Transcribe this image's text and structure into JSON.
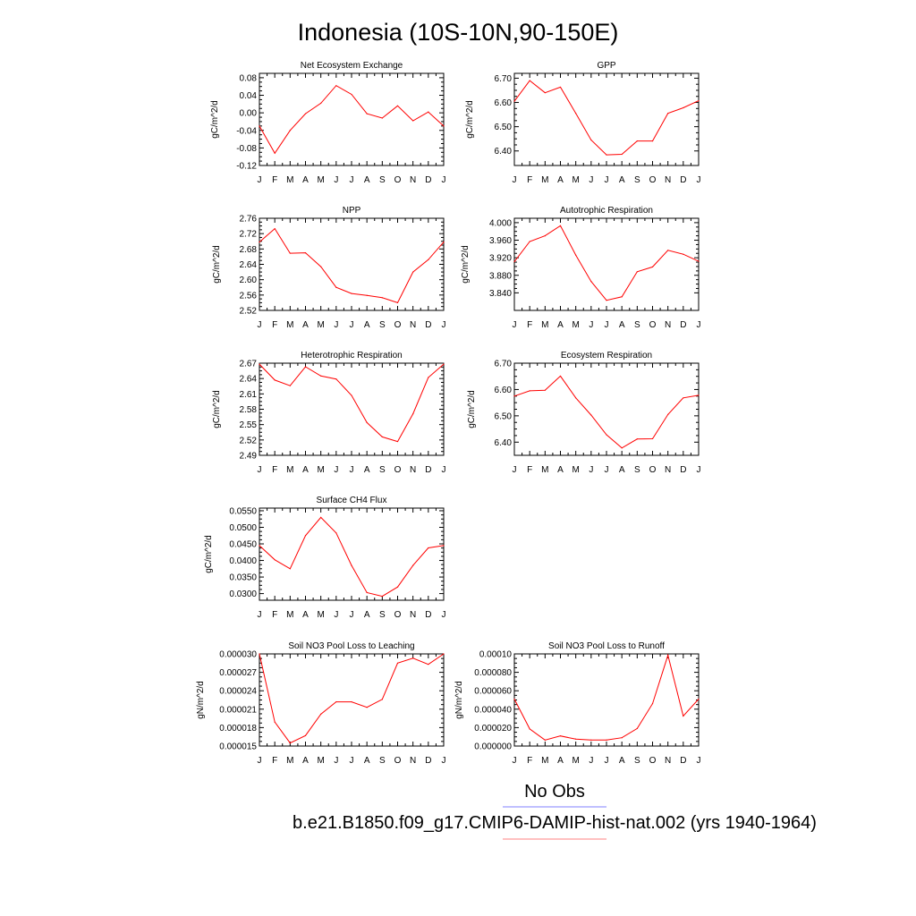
{
  "figure": {
    "title": "Indonesia (10S-10N,90-150E)",
    "legend": [
      {
        "label": "No Obs",
        "color": "#8080ff"
      },
      {
        "label": "b.e21.B1850.f09_g17.CMIP6-DAMIP-hist-nat.002 (yrs 1940-1964)",
        "color": "#ff8080"
      }
    ]
  },
  "chart_data": [
    {
      "type": "line",
      "title": "Net Ecosystem Exchange",
      "ylabel": "gC/m^2/d",
      "categories": [
        "J",
        "F",
        "M",
        "A",
        "M",
        "J",
        "J",
        "A",
        "S",
        "O",
        "N",
        "D",
        "J"
      ],
      "ylim": [
        -0.12,
        0.09
      ],
      "yticks": [
        "0.08",
        "0.04",
        "0.00",
        "-0.04",
        "-0.08",
        "-0.12"
      ],
      "ytick_values": [
        0.08,
        0.04,
        0.0,
        -0.04,
        -0.08,
        -0.12
      ],
      "values": [
        -0.03,
        -0.092,
        -0.04,
        -0.002,
        0.022,
        0.062,
        0.042,
        -0.002,
        -0.012,
        0.016,
        -0.018,
        0.002,
        -0.03
      ],
      "color": "#ff0000"
    },
    {
      "type": "line",
      "title": "GPP",
      "ylabel": "gC/m^2/d",
      "categories": [
        "J",
        "F",
        "M",
        "A",
        "M",
        "J",
        "J",
        "A",
        "S",
        "O",
        "N",
        "D",
        "J"
      ],
      "ylim": [
        6.34,
        6.72
      ],
      "yticks": [
        "6.70",
        "6.60",
        "6.50",
        "6.40"
      ],
      "ytick_values": [
        6.7,
        6.6,
        6.5,
        6.4
      ],
      "values": [
        6.605,
        6.69,
        6.64,
        6.663,
        6.555,
        6.445,
        6.384,
        6.386,
        6.441,
        6.441,
        6.555,
        6.578,
        6.607
      ],
      "color": "#ff0000"
    },
    {
      "type": "line",
      "title": "NPP",
      "ylabel": "gC/m^2/d",
      "categories": [
        "J",
        "F",
        "M",
        "A",
        "M",
        "J",
        "J",
        "A",
        "S",
        "O",
        "N",
        "D",
        "J"
      ],
      "ylim": [
        2.52,
        2.76
      ],
      "yticks": [
        "2.76",
        "2.72",
        "2.68",
        "2.64",
        "2.60",
        "2.56",
        "2.52"
      ],
      "ytick_values": [
        2.76,
        2.72,
        2.68,
        2.64,
        2.6,
        2.56,
        2.52
      ],
      "values": [
        2.698,
        2.733,
        2.669,
        2.67,
        2.634,
        2.58,
        2.564,
        2.559,
        2.553,
        2.54,
        2.62,
        2.652,
        2.698
      ],
      "color": "#ff0000"
    },
    {
      "type": "line",
      "title": "Autotrophic Respiration",
      "ylabel": "gC/m^2/d",
      "categories": [
        "J",
        "F",
        "M",
        "A",
        "M",
        "J",
        "J",
        "A",
        "S",
        "O",
        "N",
        "D",
        "J"
      ],
      "ylim": [
        3.8,
        4.01
      ],
      "yticks": [
        "4.000",
        "3.960",
        "3.920",
        "3.880",
        "3.840"
      ],
      "ytick_values": [
        4.0,
        3.96,
        3.92,
        3.88,
        3.84
      ],
      "values": [
        3.911,
        3.957,
        3.97,
        3.993,
        3.926,
        3.866,
        3.823,
        3.831,
        3.888,
        3.899,
        3.937,
        3.928,
        3.912
      ],
      "color": "#ff0000"
    },
    {
      "type": "line",
      "title": "Heterotrophic Respiration",
      "ylabel": "gC/m^2/d",
      "categories": [
        "J",
        "F",
        "M",
        "A",
        "M",
        "J",
        "J",
        "A",
        "S",
        "O",
        "N",
        "D",
        "J"
      ],
      "ylim": [
        2.49,
        2.67
      ],
      "yticks": [
        "2.67",
        "2.64",
        "2.61",
        "2.58",
        "2.55",
        "2.52",
        "2.49"
      ],
      "ytick_values": [
        2.67,
        2.64,
        2.61,
        2.58,
        2.55,
        2.52,
        2.49
      ],
      "values": [
        2.668,
        2.637,
        2.626,
        2.663,
        2.645,
        2.639,
        2.607,
        2.554,
        2.526,
        2.517,
        2.571,
        2.642,
        2.668
      ],
      "color": "#ff0000"
    },
    {
      "type": "line",
      "title": "Ecosystem Respiration",
      "ylabel": "gC/m^2/d",
      "categories": [
        "J",
        "F",
        "M",
        "A",
        "M",
        "J",
        "J",
        "A",
        "S",
        "O",
        "N",
        "D",
        "J"
      ],
      "ylim": [
        6.35,
        6.7
      ],
      "yticks": [
        "6.70",
        "6.60",
        "6.50",
        "6.40"
      ],
      "ytick_values": [
        6.7,
        6.6,
        6.5,
        6.4
      ],
      "values": [
        6.575,
        6.595,
        6.597,
        6.651,
        6.568,
        6.503,
        6.428,
        6.378,
        6.412,
        6.413,
        6.505,
        6.568,
        6.578
      ],
      "color": "#ff0000"
    },
    {
      "type": "line",
      "title": "Surface CH4 Flux",
      "ylabel": "gC/m^2/d",
      "categories": [
        "J",
        "F",
        "M",
        "A",
        "M",
        "J",
        "J",
        "A",
        "S",
        "O",
        "N",
        "D",
        "J"
      ],
      "ylim": [
        0.028,
        0.0558
      ],
      "yticks": [
        "0.0550",
        "0.0500",
        "0.0450",
        "0.0400",
        "0.0350",
        "0.0300"
      ],
      "ytick_values": [
        0.055,
        0.05,
        0.045,
        0.04,
        0.035,
        0.03
      ],
      "values": [
        0.0445,
        0.0402,
        0.0375,
        0.0475,
        0.053,
        0.0483,
        0.0385,
        0.0303,
        0.0292,
        0.032,
        0.0385,
        0.0438,
        0.0445
      ],
      "color": "#ff0000"
    },
    {
      "type": "line",
      "title": "Soil NO3 Pool Loss to Leaching",
      "ylabel": "gN/m^2/d",
      "categories": [
        "J",
        "F",
        "M",
        "A",
        "M",
        "J",
        "J",
        "A",
        "S",
        "O",
        "N",
        "D",
        "J"
      ],
      "ylim": [
        1.5e-05,
        3e-05
      ],
      "yticks": [
        "0.000030",
        "0.000027",
        "0.000024",
        "0.000021",
        "0.000018",
        "0.000015"
      ],
      "ytick_values": [
        3e-05,
        2.7e-05,
        2.4e-05,
        2.1e-05,
        1.8e-05,
        1.5e-05
      ],
      "values": [
        3e-05,
        1.89e-05,
        1.55e-05,
        1.67e-05,
        2.02e-05,
        2.22e-05,
        2.22e-05,
        2.13e-05,
        2.26e-05,
        2.85e-05,
        2.93e-05,
        2.83e-05,
        3e-05
      ],
      "color": "#ff0000"
    },
    {
      "type": "line",
      "title": "Soil NO3 Pool Loss to Runoff",
      "ylabel": "gN/m^2/d",
      "categories": [
        "J",
        "F",
        "M",
        "A",
        "M",
        "J",
        "J",
        "A",
        "S",
        "O",
        "N",
        "D",
        "J"
      ],
      "ylim": [
        0.0,
        0.0001
      ],
      "yticks": [
        "0.00010",
        "0.000080",
        "0.000060",
        "0.000040",
        "0.000020",
        "0.000000"
      ],
      "ytick_values": [
        0.0001,
        8e-05,
        6e-05,
        4e-05,
        2e-05,
        0.0
      ],
      "values": [
        5.1e-05,
        1.85e-05,
        6.5e-06,
        1.1e-05,
        7.5e-06,
        6.5e-06,
        6.5e-06,
        9e-06,
        1.9e-05,
        4.6e-05,
        9.85e-05,
        3.25e-05,
        5.1e-05
      ],
      "color": "#ff0000"
    }
  ]
}
